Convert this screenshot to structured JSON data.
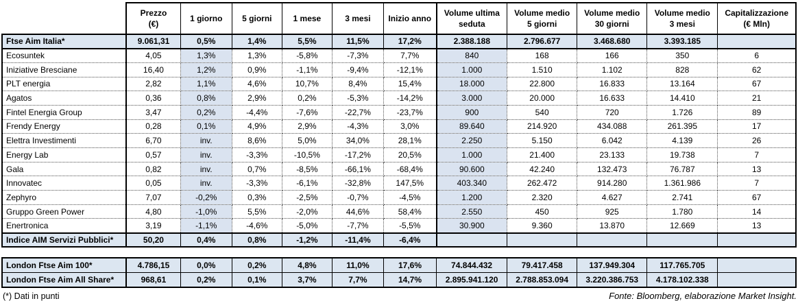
{
  "colors": {
    "highlight_row": "#dce6f1",
    "highlight_col": "#dae3f0"
  },
  "main_table": {
    "columns": [
      {
        "line1": "Prezzo",
        "line2": "(€)"
      },
      {
        "line1": "1 giorno",
        "line2": ""
      },
      {
        "line1": "5 giorni",
        "line2": ""
      },
      {
        "line1": "1 mese",
        "line2": ""
      },
      {
        "line1": "3 mesi",
        "line2": ""
      },
      {
        "line1": "Inizio anno",
        "line2": ""
      },
      {
        "line1": "Volume ultima",
        "line2": "seduta"
      },
      {
        "line1": "Volume medio",
        "line2": "5 giorni"
      },
      {
        "line1": "Volume medio",
        "line2": "30 giorni"
      },
      {
        "line1": "Volume medio",
        "line2": "3 mesi"
      },
      {
        "line1": "Capitalizzazione",
        "line2": "(€ Mln)"
      }
    ],
    "rows": [
      {
        "name": "Ftse Aim Italia*",
        "type": "index",
        "values": [
          "9.061,31",
          "0,5%",
          "1,4%",
          "5,5%",
          "11,5%",
          "17,2%",
          "2.388.188",
          "2.796.677",
          "3.468.680",
          "3.393.185",
          ""
        ]
      },
      {
        "name": "Ecosuntek",
        "type": "stock",
        "values": [
          "4,05",
          "1,3%",
          "1,3%",
          "-5,8%",
          "-7,3%",
          "7,7%",
          "840",
          "168",
          "166",
          "350",
          "6"
        ]
      },
      {
        "name": "Iniziative Bresciane",
        "type": "stock",
        "values": [
          "16,40",
          "1,2%",
          "0,9%",
          "-1,1%",
          "-9,4%",
          "-12,1%",
          "1.000",
          "1.510",
          "1.102",
          "828",
          "62"
        ]
      },
      {
        "name": "PLT energia",
        "type": "stock",
        "values": [
          "2,82",
          "1,1%",
          "4,6%",
          "10,7%",
          "8,4%",
          "15,4%",
          "18.000",
          "22.800",
          "16.833",
          "13.164",
          "67"
        ]
      },
      {
        "name": "Agatos",
        "type": "stock",
        "values": [
          "0,36",
          "0,8%",
          "2,9%",
          "0,2%",
          "-5,3%",
          "-14,2%",
          "3.000",
          "20.000",
          "16.633",
          "14.410",
          "21"
        ]
      },
      {
        "name": "Fintel Energia Group",
        "type": "stock",
        "values": [
          "3,47",
          "0,2%",
          "-4,4%",
          "-7,6%",
          "-22,7%",
          "-23,7%",
          "900",
          "540",
          "720",
          "1.726",
          "89"
        ]
      },
      {
        "name": "Frendy Energy",
        "type": "stock",
        "values": [
          "0,28",
          "0,1%",
          "4,9%",
          "2,9%",
          "-4,3%",
          "3,0%",
          "89.640",
          "214.920",
          "434.088",
          "261.395",
          "17"
        ]
      },
      {
        "name": "Elettra Investimenti",
        "type": "stock",
        "values": [
          "6,70",
          "inv.",
          "8,6%",
          "5,0%",
          "34,0%",
          "28,1%",
          "2.250",
          "5.150",
          "6.042",
          "4.139",
          "26"
        ]
      },
      {
        "name": "Energy Lab",
        "type": "stock",
        "values": [
          "0,57",
          "inv.",
          "-3,3%",
          "-10,5%",
          "-17,2%",
          "20,5%",
          "1.000",
          "21.400",
          "23.133",
          "19.738",
          "7"
        ]
      },
      {
        "name": "Gala",
        "type": "stock",
        "values": [
          "0,82",
          "inv.",
          "0,7%",
          "-8,5%",
          "-66,1%",
          "-68,4%",
          "90.600",
          "42.240",
          "132.473",
          "76.787",
          "13"
        ]
      },
      {
        "name": "Innovatec",
        "type": "stock",
        "values": [
          "0,05",
          "inv.",
          "-3,3%",
          "-6,1%",
          "-32,8%",
          "147,5%",
          "403.340",
          "262.472",
          "914.280",
          "1.361.986",
          "7"
        ]
      },
      {
        "name": "Zephyro",
        "type": "stock",
        "values": [
          "7,07",
          "-0,2%",
          "0,3%",
          "-2,5%",
          "-0,7%",
          "-4,5%",
          "1.200",
          "2.320",
          "4.627",
          "2.741",
          "67"
        ]
      },
      {
        "name": "Gruppo Green Power",
        "type": "stock",
        "values": [
          "4,80",
          "-1,0%",
          "5,5%",
          "-2,0%",
          "44,6%",
          "58,4%",
          "2.550",
          "450",
          "925",
          "1.780",
          "14"
        ]
      },
      {
        "name": "Enertronica",
        "type": "stock",
        "values": [
          "3,19",
          "-1,1%",
          "-4,6%",
          "-5,0%",
          "-7,7%",
          "-5,5%",
          "30.900",
          "9.360",
          "13.870",
          "12.669",
          "13"
        ]
      },
      {
        "name": "Indice AIM Servizi Pubblici*",
        "type": "index",
        "values": [
          "50,20",
          "0,4%",
          "0,8%",
          "-1,2%",
          "-11,4%",
          "-6,4%",
          "",
          "",
          "",
          "",
          ""
        ]
      }
    ]
  },
  "london_table": {
    "rows": [
      {
        "name": "London Ftse Aim 100*",
        "values": [
          "4.786,15",
          "0,0%",
          "0,2%",
          "4,8%",
          "11,0%",
          "17,6%",
          "74.844.432",
          "79.417.458",
          "137.949.304",
          "117.765.705",
          ""
        ]
      },
      {
        "name": "London Ftse Aim All Share*",
        "values": [
          "968,61",
          "0,2%",
          "0,1%",
          "3,7%",
          "7,7%",
          "14,7%",
          "2.895.941.120",
          "2.788.853.094",
          "3.220.386.753",
          "4.178.102.338",
          ""
        ]
      }
    ]
  },
  "footer": {
    "note": "(*) Dati in punti",
    "source": "Fonte: Bloomberg, elaborazione Market Insight."
  }
}
